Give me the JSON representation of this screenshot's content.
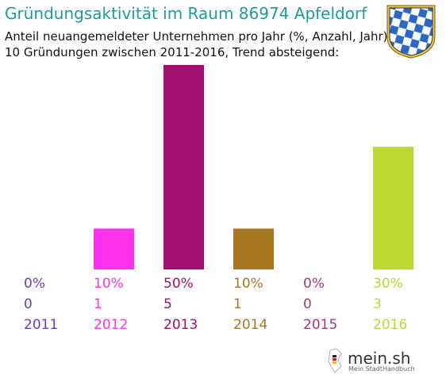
{
  "header": {
    "title": "Gründungsaktivität im Raum 86974 Apfeldorf",
    "subtitle_line1": "Anteil neuangemeldeter Unternehmen pro Jahr (%, Anzahl, Jahr)",
    "subtitle_line2": "10 Gründungen zwischen 2011-2016, Trend absteigend:"
  },
  "logo": {
    "name": "mein.sh",
    "tagline": "Mein StadtHandbuch"
  },
  "chart_data": {
    "type": "bar",
    "title": "Gründungsaktivität im Raum 86974 Apfeldorf",
    "categories": [
      "2011",
      "2012",
      "2013",
      "2014",
      "2015",
      "2016"
    ],
    "values": [
      0,
      10,
      50,
      10,
      0,
      30
    ],
    "counts": [
      0,
      1,
      5,
      1,
      0,
      3
    ],
    "percent_labels": [
      "0%",
      "10%",
      "50%",
      "10%",
      "0%",
      "30%"
    ],
    "count_labels": [
      "0",
      "1",
      "5",
      "1",
      "0",
      "3"
    ],
    "colors": [
      "#6a3dbe",
      "#ff33ee",
      "#a0106f",
      "#a87722",
      "#a33a78",
      "#bcd832"
    ],
    "ylim": [
      0,
      50
    ],
    "grid": false,
    "xlabel": "",
    "ylabel": ""
  }
}
